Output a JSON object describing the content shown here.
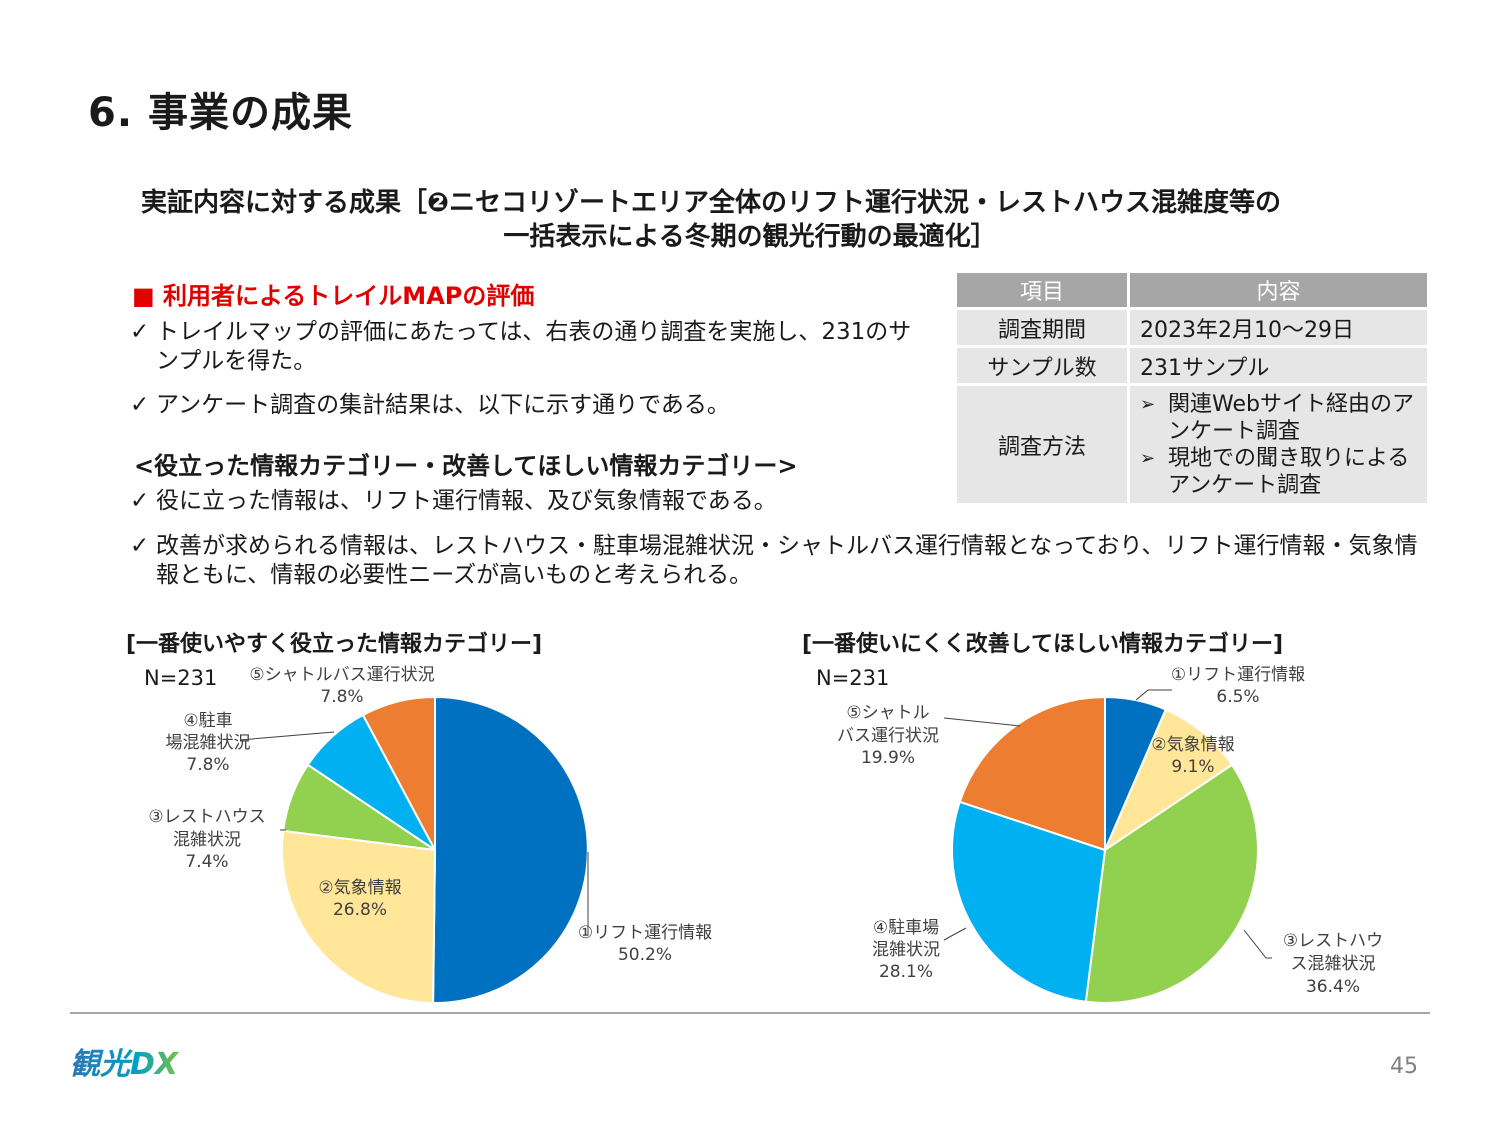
{
  "title": "6. 事業の成果",
  "subtitle": {
    "line1": "実証内容に対する成果［❷ニセコリゾートエリア全体のリフト運行状況・レストハウス混雑度等の",
    "line2": "一括表示による冬期の観光行動の最適化］"
  },
  "section_heading": "■ 利用者によるトレイルMAPの評価",
  "check_mark": "✓",
  "bullets_top": [
    "トレイルマップの評価にあたっては、右表の通り調査を実施し、231のサンプルを得た。",
    "アンケート調査の集計結果は、以下に示す通りである。"
  ],
  "category_heading": "<役立った情報カテゴリー・改善してほしい情報カテゴリー>",
  "bullets_bottom": [
    "役に立った情報は、リフト運行情報、及び気象情報である。",
    "改善が求められる情報は、レストハウス・駐車場混雑状況・シャトルバス運行情報となっており、リフト運行情報・気象情報ともに、情報の必要性ニーズが高いものと考えられる。"
  ],
  "survey_table": {
    "header_item": "項目",
    "header_content": "内容",
    "rows": [
      {
        "item": "調査期間",
        "content": "2023年2月10～29日"
      },
      {
        "item": "サンプル数",
        "content": "231サンプル"
      }
    ],
    "method_item": "調査方法",
    "method_bullet": "➢",
    "method_list": [
      "関連Webサイト経由のアンケート調査",
      "現地での聞き取りによるアンケート調査"
    ]
  },
  "chart_data": [
    {
      "type": "pie",
      "title": "[一番使いやすく役立った情報カテゴリー]",
      "n_label": "N=231",
      "slices": [
        {
          "name": "①リフト運行情報",
          "value": 50.2,
          "label": "50.2%",
          "color": "#0070C0"
        },
        {
          "name": "②気象情報",
          "value": 26.8,
          "label": "26.8%",
          "color": "#FFE699"
        },
        {
          "name": "③レストハウス混雑状況",
          "value": 7.4,
          "label": "7.4%",
          "color": "#92D050"
        },
        {
          "name": "④駐車場混雑状況",
          "value": 7.8,
          "label": "7.8%",
          "color": "#00B0F0"
        },
        {
          "name": "⑤シャトルバス運行状況",
          "value": 7.8,
          "label": "7.8%",
          "color": "#ED7D31"
        }
      ]
    },
    {
      "type": "pie",
      "title": "[一番使いにくく改善してほしい情報カテゴリー]",
      "n_label": "N=231",
      "slices": [
        {
          "name": "①リフト運行情報",
          "value": 6.5,
          "label": "6.5%",
          "color": "#0070C0"
        },
        {
          "name": "②気象情報",
          "value": 9.1,
          "label": "9.1%",
          "color": "#FFE699"
        },
        {
          "name": "③レストハウス混雑状況",
          "value": 36.4,
          "label": "36.4%",
          "color": "#92D050"
        },
        {
          "name": "④駐車場混雑状況",
          "value": 28.1,
          "label": "28.1%",
          "color": "#00B0F0"
        },
        {
          "name": "⑤シャトルバス運行状況",
          "value": 19.9,
          "label": "19.9%",
          "color": "#ED7D31"
        }
      ]
    }
  ],
  "footer": {
    "logo_text": "観光DX",
    "page_number": "45"
  }
}
